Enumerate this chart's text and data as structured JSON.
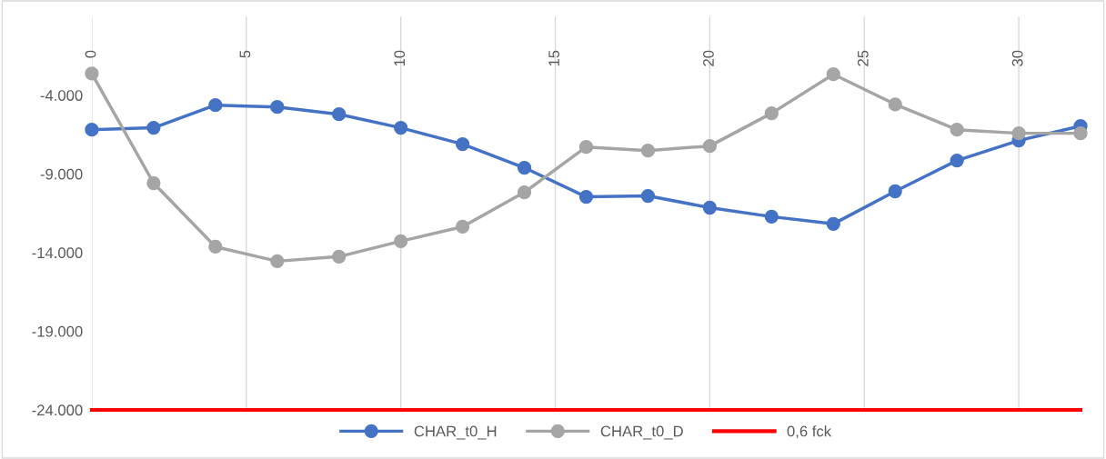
{
  "chart_data": {
    "type": "line",
    "x": [
      0,
      2,
      4,
      6,
      8,
      10,
      12,
      14,
      16,
      18,
      20,
      22,
      24,
      26,
      28,
      30,
      32
    ],
    "series": [
      {
        "name": "CHAR_t0_H",
        "color": "#4472c4",
        "marker": "circle",
        "values": [
          -6190,
          -6070,
          -4630,
          -4750,
          -5210,
          -6070,
          -7110,
          -8610,
          -10460,
          -10400,
          -11150,
          -11720,
          -12180,
          -10110,
          -8150,
          -6880,
          -5960
        ]
      },
      {
        "name": "CHAR_t0_D",
        "color": "#a5a5a5",
        "marker": "circle",
        "values": [
          -2620,
          -9590,
          -13630,
          -14550,
          -14260,
          -13280,
          -12360,
          -10170,
          -7290,
          -7520,
          -7230,
          -5150,
          -2670,
          -4580,
          -6190,
          -6420,
          -6420
        ]
      },
      {
        "name": "0,6 fck",
        "color": "#ff0000",
        "marker": "none",
        "x": [
          0,
          32
        ],
        "values": [
          -24000,
          -24000
        ]
      }
    ],
    "xlim": [
      0,
      32
    ],
    "xticks": [
      0,
      5,
      10,
      15,
      20,
      25,
      30
    ],
    "ylim": [
      -24000,
      1000
    ],
    "yticks": [
      {
        "value": -24000,
        "label": "-24.000"
      },
      {
        "value": -19000,
        "label": "-19.000"
      },
      {
        "value": -14000,
        "label": "-14.000"
      },
      {
        "value": -9000,
        "label": "-9.000"
      },
      {
        "value": -4000,
        "label": "-4.000"
      }
    ],
    "grid": "x",
    "legend": "bottom",
    "line_style": "solid"
  }
}
